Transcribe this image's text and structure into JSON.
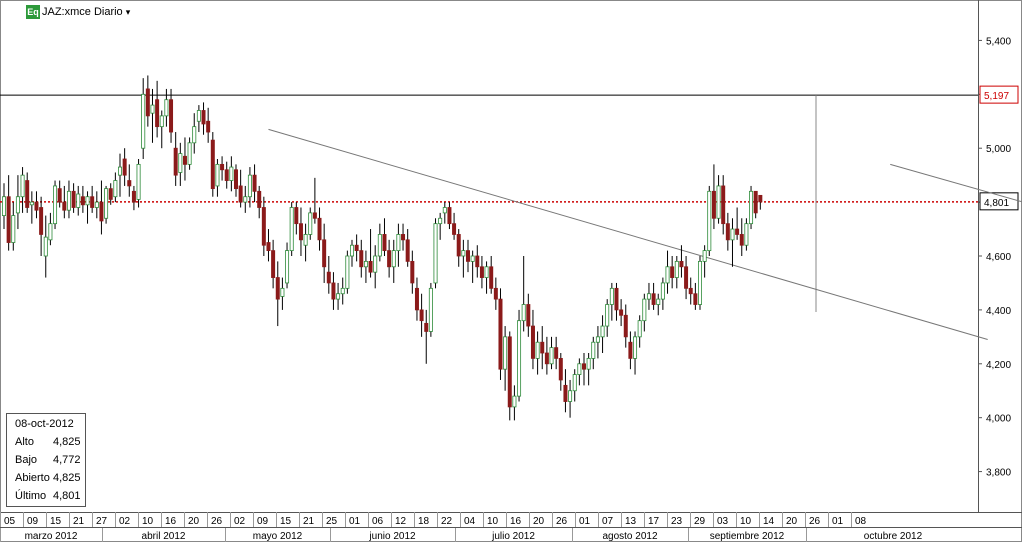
{
  "header": {
    "badge": "Eq",
    "symbol": "JAZ:xmce Diario",
    "dropdown_icon": "triangle-down-icon"
  },
  "info_box": {
    "date": "08-oct-2012",
    "rows": [
      {
        "label": "Alto",
        "value": "4,825"
      },
      {
        "label": "Bajo",
        "value": "4,772"
      },
      {
        "label": "Abierto",
        "value": "4,825"
      },
      {
        "label": "Último",
        "value": "4,801"
      }
    ]
  },
  "price_tags": {
    "resistance": "5,197",
    "last": "4,801"
  },
  "colors": {
    "up": "#2e8b3a",
    "down": "#8b1a1a",
    "last_line": "#cc0000",
    "badge": "#2d9a3a"
  },
  "chart_data": {
    "type": "candlestick",
    "timeframe": "Diario",
    "ylim": [
      3.65,
      5.55
    ],
    "y_ticks": [
      3.8,
      4.0,
      4.2,
      4.4,
      4.6,
      4.8,
      5.0,
      5.2,
      5.4
    ],
    "y_tick_labels": [
      "3,800",
      "4,000",
      "4,200",
      "4,400",
      "4,600",
      "4,800",
      "5,000",
      "5,200",
      "5,400"
    ],
    "day_labels": [
      "05",
      "09",
      "15",
      "21",
      "27",
      "02",
      "10",
      "16",
      "20",
      "26",
      "02",
      "09",
      "15",
      "21",
      "25",
      "01",
      "06",
      "12",
      "18",
      "22",
      "04",
      "10",
      "16",
      "20",
      "26",
      "01",
      "07",
      "13",
      "17",
      "23",
      "29",
      "03",
      "10",
      "14",
      "20",
      "26",
      "01",
      "08"
    ],
    "month_labels": [
      "marzo 2012",
      "abril 2012",
      "mayo 2012",
      "junio 2012",
      "julio 2012",
      "agosto 2012",
      "septiembre 2012",
      "octubre 2012"
    ],
    "horizontal_levels": [
      {
        "name": "resistance",
        "y": 5.197
      },
      {
        "name": "last",
        "y": 4.801
      }
    ],
    "trendlines": [
      {
        "from": [
          57,
          5.07
        ],
        "to": [
          212,
          4.29
        ]
      },
      {
        "from": [
          191,
          4.94
        ],
        "to": [
          236,
          4.72
        ]
      }
    ],
    "vertical_marker_bar": 175,
    "last": {
      "date": "08-oct-2012",
      "open": 4.825,
      "high": 4.825,
      "low": 4.772,
      "close": 4.801
    },
    "bars": [
      [
        4.75,
        4.87,
        4.7,
        4.82
      ],
      [
        4.82,
        4.9,
        4.62,
        4.65
      ],
      [
        4.65,
        4.8,
        4.62,
        4.75
      ],
      [
        4.76,
        4.9,
        4.7,
        4.82
      ],
      [
        4.82,
        4.93,
        4.76,
        4.9
      ],
      [
        4.88,
        4.91,
        4.76,
        4.78
      ],
      [
        4.79,
        4.84,
        4.72,
        4.8
      ],
      [
        4.8,
        4.84,
        4.74,
        4.77
      ],
      [
        4.78,
        4.82,
        4.6,
        4.68
      ],
      [
        4.6,
        4.75,
        4.52,
        4.67
      ],
      [
        4.66,
        4.76,
        4.64,
        4.72
      ],
      [
        4.72,
        4.88,
        4.7,
        4.86
      ],
      [
        4.85,
        4.88,
        4.78,
        4.8
      ],
      [
        4.8,
        4.86,
        4.74,
        4.77
      ],
      [
        4.77,
        4.88,
        4.74,
        4.84
      ],
      [
        4.84,
        4.87,
        4.76,
        4.78
      ],
      [
        4.78,
        4.86,
        4.75,
        4.83
      ],
      [
        4.82,
        4.86,
        4.76,
        4.79
      ],
      [
        4.79,
        4.84,
        4.72,
        4.82
      ],
      [
        4.82,
        4.86,
        4.76,
        4.78
      ],
      [
        4.78,
        4.84,
        4.74,
        4.8
      ],
      [
        4.8,
        4.88,
        4.68,
        4.73
      ],
      [
        4.74,
        4.86,
        4.72,
        4.85
      ],
      [
        4.85,
        4.87,
        4.79,
        4.81
      ],
      [
        4.82,
        4.91,
        4.8,
        4.88
      ],
      [
        4.9,
        4.98,
        4.82,
        4.93
      ],
      [
        4.96,
        5.0,
        4.86,
        4.9
      ],
      [
        4.88,
        4.94,
        4.82,
        4.86
      ],
      [
        4.84,
        4.86,
        4.77,
        4.8
      ],
      [
        4.81,
        4.96,
        4.78,
        4.94
      ],
      [
        5.0,
        5.26,
        4.96,
        5.2
      ],
      [
        5.22,
        5.27,
        5.08,
        5.12
      ],
      [
        5.13,
        5.22,
        5.02,
        5.16
      ],
      [
        5.18,
        5.25,
        5.04,
        5.08
      ],
      [
        5.08,
        5.14,
        5.0,
        5.12
      ],
      [
        5.12,
        5.22,
        5.08,
        5.18
      ],
      [
        5.18,
        5.22,
        5.02,
        5.06
      ],
      [
        5.0,
        5.06,
        4.86,
        4.9
      ],
      [
        4.91,
        5.02,
        4.86,
        4.98
      ],
      [
        4.97,
        5.04,
        4.88,
        4.94
      ],
      [
        4.94,
        5.04,
        4.92,
        5.02
      ],
      [
        5.02,
        5.13,
        4.98,
        5.08
      ],
      [
        5.1,
        5.16,
        5.06,
        5.14
      ],
      [
        5.14,
        5.17,
        5.05,
        5.09
      ],
      [
        5.1,
        5.15,
        5.02,
        5.06
      ],
      [
        5.03,
        5.06,
        4.82,
        4.85
      ],
      [
        4.86,
        4.96,
        4.82,
        4.94
      ],
      [
        4.94,
        4.97,
        4.88,
        4.92
      ],
      [
        4.92,
        4.95,
        4.85,
        4.88
      ],
      [
        4.88,
        4.97,
        4.84,
        4.93
      ],
      [
        4.92,
        4.94,
        4.82,
        4.85
      ],
      [
        4.86,
        4.92,
        4.78,
        4.8
      ],
      [
        4.8,
        4.86,
        4.76,
        4.82
      ],
      [
        4.82,
        4.93,
        4.78,
        4.9
      ],
      [
        4.9,
        4.94,
        4.8,
        4.84
      ],
      [
        4.84,
        4.86,
        4.74,
        4.78
      ],
      [
        4.78,
        4.82,
        4.6,
        4.64
      ],
      [
        4.65,
        4.7,
        4.58,
        4.62
      ],
      [
        4.62,
        4.66,
        4.48,
        4.52
      ],
      [
        4.52,
        4.58,
        4.34,
        4.44
      ],
      [
        4.45,
        4.52,
        4.4,
        4.48
      ],
      [
        4.5,
        4.65,
        4.48,
        4.62
      ],
      [
        4.62,
        4.8,
        4.6,
        4.78
      ],
      [
        4.78,
        4.8,
        4.68,
        4.72
      ],
      [
        4.72,
        4.78,
        4.6,
        4.66
      ],
      [
        4.64,
        4.72,
        4.58,
        4.68
      ],
      [
        4.68,
        4.78,
        4.66,
        4.76
      ],
      [
        4.76,
        4.89,
        4.72,
        4.74
      ],
      [
        4.74,
        4.78,
        4.62,
        4.66
      ],
      [
        4.66,
        4.72,
        4.5,
        4.56
      ],
      [
        4.54,
        4.6,
        4.46,
        4.5
      ],
      [
        4.5,
        4.54,
        4.4,
        4.44
      ],
      [
        4.44,
        4.5,
        4.4,
        4.46
      ],
      [
        4.46,
        4.52,
        4.42,
        4.48
      ],
      [
        4.48,
        4.62,
        4.46,
        4.6
      ],
      [
        4.6,
        4.66,
        4.56,
        4.64
      ],
      [
        4.64,
        4.68,
        4.58,
        4.62
      ],
      [
        4.62,
        4.66,
        4.52,
        4.56
      ],
      [
        4.56,
        4.62,
        4.5,
        4.58
      ],
      [
        4.58,
        4.7,
        4.52,
        4.54
      ],
      [
        4.54,
        4.64,
        4.48,
        4.6
      ],
      [
        4.6,
        4.72,
        4.58,
        4.68
      ],
      [
        4.68,
        4.74,
        4.6,
        4.62
      ],
      [
        4.62,
        4.66,
        4.52,
        4.56
      ],
      [
        4.56,
        4.66,
        4.5,
        4.62
      ],
      [
        4.62,
        4.72,
        4.56,
        4.68
      ],
      [
        4.68,
        4.72,
        4.62,
        4.66
      ],
      [
        4.66,
        4.7,
        4.56,
        4.58
      ],
      [
        4.58,
        4.62,
        4.46,
        4.5
      ],
      [
        4.48,
        4.52,
        4.36,
        4.4
      ],
      [
        4.4,
        4.46,
        4.3,
        4.36
      ],
      [
        4.35,
        4.4,
        4.2,
        4.32
      ],
      [
        4.32,
        4.5,
        4.3,
        4.48
      ],
      [
        4.5,
        4.74,
        4.48,
        4.72
      ],
      [
        4.72,
        4.76,
        4.66,
        4.74
      ],
      [
        4.76,
        4.8,
        4.72,
        4.78
      ],
      [
        4.78,
        4.8,
        4.7,
        4.72
      ],
      [
        4.72,
        4.76,
        4.66,
        4.68
      ],
      [
        4.68,
        4.7,
        4.56,
        4.6
      ],
      [
        4.6,
        4.66,
        4.52,
        4.62
      ],
      [
        4.62,
        4.66,
        4.54,
        4.58
      ],
      [
        4.58,
        4.62,
        4.5,
        4.6
      ],
      [
        4.6,
        4.64,
        4.52,
        4.56
      ],
      [
        4.56,
        4.6,
        4.48,
        4.52
      ],
      [
        4.52,
        4.58,
        4.46,
        4.56
      ],
      [
        4.56,
        4.6,
        4.46,
        4.48
      ],
      [
        4.48,
        4.52,
        4.4,
        4.44
      ],
      [
        4.44,
        4.48,
        4.14,
        4.18
      ],
      [
        4.18,
        4.34,
        4.1,
        4.3
      ],
      [
        4.3,
        4.32,
        3.99,
        4.04
      ],
      [
        4.04,
        4.12,
        3.99,
        4.08
      ],
      [
        4.08,
        4.4,
        4.06,
        4.36
      ],
      [
        4.36,
        4.6,
        4.32,
        4.42
      ],
      [
        4.42,
        4.46,
        4.3,
        4.34
      ],
      [
        4.34,
        4.4,
        4.18,
        4.22
      ],
      [
        4.22,
        4.32,
        4.16,
        4.28
      ],
      [
        4.28,
        4.34,
        4.18,
        4.24
      ],
      [
        4.24,
        4.3,
        4.16,
        4.2
      ],
      [
        4.2,
        4.3,
        4.18,
        4.26
      ],
      [
        4.26,
        4.3,
        4.18,
        4.22
      ],
      [
        4.22,
        4.24,
        4.1,
        4.14
      ],
      [
        4.12,
        4.18,
        4.02,
        4.06
      ],
      [
        4.06,
        4.14,
        4.0,
        4.1
      ],
      [
        4.1,
        4.18,
        4.06,
        4.16
      ],
      [
        4.16,
        4.22,
        4.12,
        4.2
      ],
      [
        4.2,
        4.24,
        4.12,
        4.18
      ],
      [
        4.18,
        4.24,
        4.12,
        4.22
      ],
      [
        4.22,
        4.3,
        4.18,
        4.28
      ],
      [
        4.28,
        4.34,
        4.22,
        4.3
      ],
      [
        4.3,
        4.38,
        4.24,
        4.34
      ],
      [
        4.34,
        4.44,
        4.3,
        4.42
      ],
      [
        4.42,
        4.5,
        4.36,
        4.48
      ],
      [
        4.48,
        4.5,
        4.36,
        4.4
      ],
      [
        4.4,
        4.44,
        4.34,
        4.38
      ],
      [
        4.38,
        4.42,
        4.26,
        4.3
      ],
      [
        4.28,
        4.32,
        4.18,
        4.22
      ],
      [
        4.22,
        4.32,
        4.16,
        4.3
      ],
      [
        4.3,
        4.38,
        4.26,
        4.36
      ],
      [
        4.36,
        4.46,
        4.32,
        4.44
      ],
      [
        4.44,
        4.5,
        4.4,
        4.46
      ],
      [
        4.46,
        4.5,
        4.4,
        4.42
      ],
      [
        4.42,
        4.46,
        4.38,
        4.44
      ],
      [
        4.44,
        4.52,
        4.4,
        4.5
      ],
      [
        4.5,
        4.62,
        4.46,
        4.56
      ],
      [
        4.56,
        4.6,
        4.48,
        4.52
      ],
      [
        4.52,
        4.6,
        4.48,
        4.58
      ],
      [
        4.58,
        4.64,
        4.52,
        4.56
      ],
      [
        4.56,
        4.6,
        4.44,
        4.48
      ],
      [
        4.48,
        4.52,
        4.42,
        4.46
      ],
      [
        4.46,
        4.5,
        4.4,
        4.42
      ],
      [
        4.42,
        4.6,
        4.4,
        4.58
      ],
      [
        4.58,
        4.64,
        4.52,
        4.62
      ],
      [
        4.62,
        4.86,
        4.6,
        4.84
      ],
      [
        4.84,
        4.94,
        4.7,
        4.74
      ],
      [
        4.74,
        4.9,
        4.72,
        4.86
      ],
      [
        4.86,
        4.9,
        4.68,
        4.72
      ],
      [
        4.72,
        4.76,
        4.62,
        4.66
      ],
      [
        4.66,
        4.74,
        4.56,
        4.7
      ],
      [
        4.7,
        4.78,
        4.66,
        4.68
      ],
      [
        4.68,
        4.74,
        4.6,
        4.64
      ],
      [
        4.64,
        4.74,
        4.62,
        4.72
      ],
      [
        4.72,
        4.86,
        4.7,
        4.84
      ],
      [
        4.84,
        4.84,
        4.74,
        4.76
      ],
      [
        4.825,
        4.825,
        4.772,
        4.801
      ]
    ]
  }
}
